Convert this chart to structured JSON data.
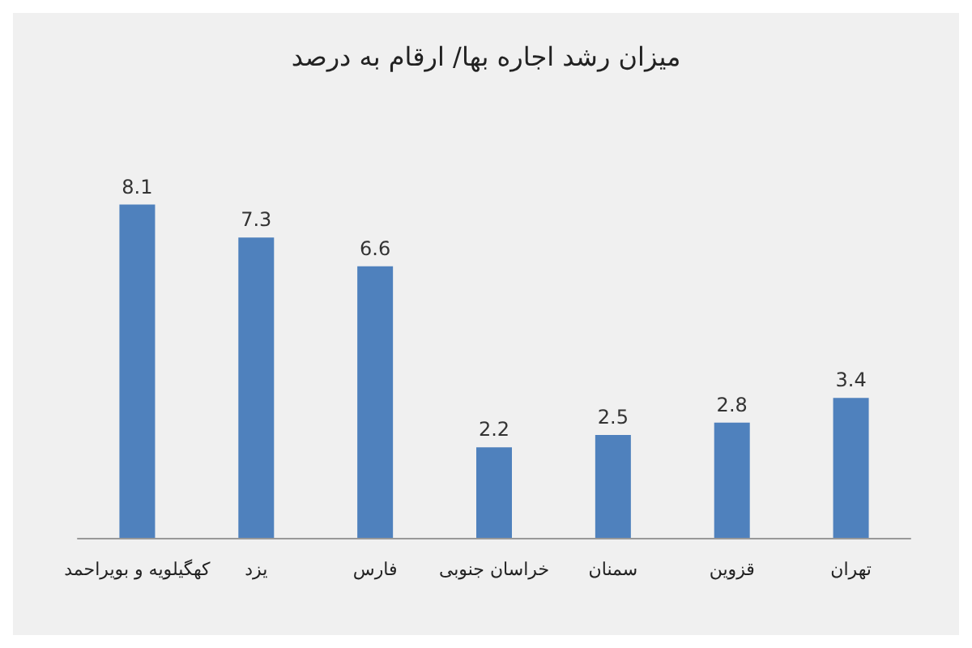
{
  "chart_data": {
    "type": "bar",
    "title": "میزان رشد اجاره بها/ ارقام به درصد",
    "categories": [
      "کهگیلویه و بویراحمد",
      "یزد",
      "فارس",
      "خراسان جنوبی",
      "سمنان",
      "قزوین",
      "تهران"
    ],
    "values": [
      8.1,
      7.3,
      6.6,
      2.2,
      2.5,
      2.8,
      3.4
    ],
    "color": "#4f81bd",
    "data_labels": true
  }
}
